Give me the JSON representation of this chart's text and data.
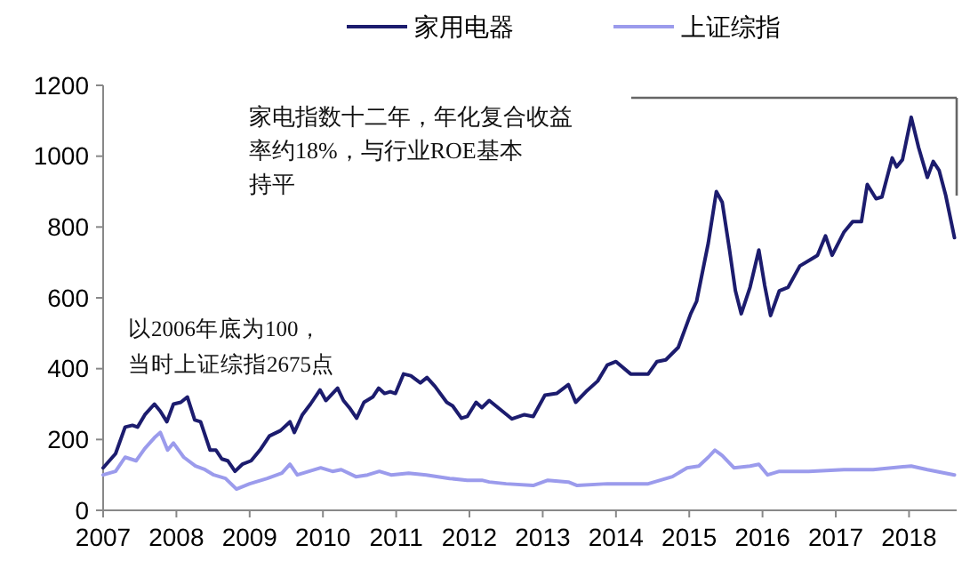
{
  "chart_data": {
    "type": "line",
    "legend": "top",
    "marker": "none",
    "line_style": "solid",
    "grid": false,
    "xlim": [
      2007,
      2018.65
    ],
    "xticks": [
      2007,
      2008,
      2009,
      2010,
      2011,
      2012,
      2013,
      2014,
      2015,
      2016,
      2017,
      2018
    ],
    "ylim": [
      0,
      1200
    ],
    "yticks": [
      0,
      200,
      400,
      600,
      800,
      1000,
      1200
    ],
    "annotations": [
      "家电指数十二年，年化复合收益率约18%，与行业ROE基本持平",
      "以2006年底为100，当时上证综指2675点"
    ],
    "series": [
      {
        "name": "家用电器",
        "color": "#1c1c6e",
        "x": [
          2007.0,
          2007.17,
          2007.3,
          2007.4,
          2007.47,
          2007.57,
          2007.7,
          2007.78,
          2007.87,
          2007.96,
          2008.06,
          2008.15,
          2008.25,
          2008.33,
          2008.46,
          2008.54,
          2008.62,
          2008.7,
          2008.8,
          2008.9,
          2009.02,
          2009.14,
          2009.27,
          2009.42,
          2009.55,
          2009.61,
          2009.72,
          2009.83,
          2009.96,
          2010.04,
          2010.2,
          2010.28,
          2010.36,
          2010.46,
          2010.56,
          2010.68,
          2010.76,
          2010.84,
          2010.92,
          2010.99,
          2011.1,
          2011.2,
          2011.33,
          2011.42,
          2011.53,
          2011.69,
          2011.77,
          2011.89,
          2011.97,
          2012.09,
          2012.17,
          2012.27,
          2012.58,
          2012.75,
          2012.87,
          2013.03,
          2013.19,
          2013.35,
          2013.45,
          2013.59,
          2013.75,
          2013.88,
          2014.0,
          2014.2,
          2014.44,
          2014.56,
          2014.68,
          2014.85,
          2015.02,
          2015.1,
          2015.26,
          2015.37,
          2015.45,
          2015.55,
          2015.63,
          2015.71,
          2015.83,
          2015.95,
          2016.03,
          2016.11,
          2016.23,
          2016.35,
          2016.51,
          2016.67,
          2016.75,
          2016.86,
          2016.95,
          2017.11,
          2017.23,
          2017.35,
          2017.43,
          2017.55,
          2017.63,
          2017.77,
          2017.83,
          2017.91,
          2018.03,
          2018.13,
          2018.25,
          2018.33,
          2018.41,
          2018.5,
          2018.62
        ],
        "values": [
          120,
          160,
          235,
          240,
          235,
          270,
          300,
          280,
          250,
          300,
          305,
          320,
          255,
          250,
          170,
          170,
          145,
          140,
          110,
          130,
          140,
          170,
          210,
          225,
          250,
          220,
          270,
          300,
          340,
          310,
          345,
          310,
          290,
          260,
          305,
          320,
          345,
          330,
          335,
          330,
          385,
          380,
          360,
          375,
          350,
          305,
          295,
          260,
          265,
          305,
          290,
          310,
          258,
          270,
          265,
          325,
          330,
          355,
          305,
          335,
          365,
          410,
          420,
          385,
          385,
          420,
          425,
          460,
          555,
          590,
          755,
          900,
          870,
          735,
          620,
          555,
          630,
          735,
          635,
          550,
          620,
          630,
          690,
          710,
          720,
          775,
          720,
          785,
          815,
          815,
          920,
          880,
          885,
          995,
          970,
          990,
          1110,
          1025,
          940,
          985,
          960,
          890,
          770
        ]
      },
      {
        "name": "上证综指",
        "color": "#9b9bec",
        "x": [
          2007.0,
          2007.17,
          2007.3,
          2007.45,
          2007.57,
          2007.7,
          2007.78,
          2007.88,
          2007.96,
          2008.1,
          2008.26,
          2008.39,
          2008.51,
          2008.67,
          2008.82,
          2009.0,
          2009.24,
          2009.44,
          2009.55,
          2009.65,
          2009.81,
          2009.97,
          2010.13,
          2010.25,
          2010.45,
          2010.61,
          2010.77,
          2010.93,
          2011.17,
          2011.41,
          2011.73,
          2011.97,
          2012.17,
          2012.27,
          2012.5,
          2012.87,
          2013.07,
          2013.35,
          2013.47,
          2013.88,
          2014.44,
          2014.77,
          2014.97,
          2015.13,
          2015.26,
          2015.35,
          2015.45,
          2015.61,
          2015.83,
          2015.95,
          2016.07,
          2016.23,
          2016.63,
          2017.11,
          2017.51,
          2018.03,
          2018.25,
          2018.62
        ],
        "values": [
          100,
          110,
          150,
          140,
          175,
          205,
          220,
          170,
          190,
          150,
          125,
          115,
          100,
          90,
          60,
          75,
          90,
          105,
          130,
          100,
          110,
          120,
          110,
          115,
          95,
          100,
          110,
          100,
          105,
          100,
          90,
          85,
          85,
          80,
          75,
          70,
          85,
          80,
          70,
          75,
          75,
          95,
          120,
          125,
          150,
          170,
          155,
          120,
          125,
          130,
          100,
          110,
          110,
          115,
          115,
          125,
          115,
          100
        ]
      }
    ]
  }
}
